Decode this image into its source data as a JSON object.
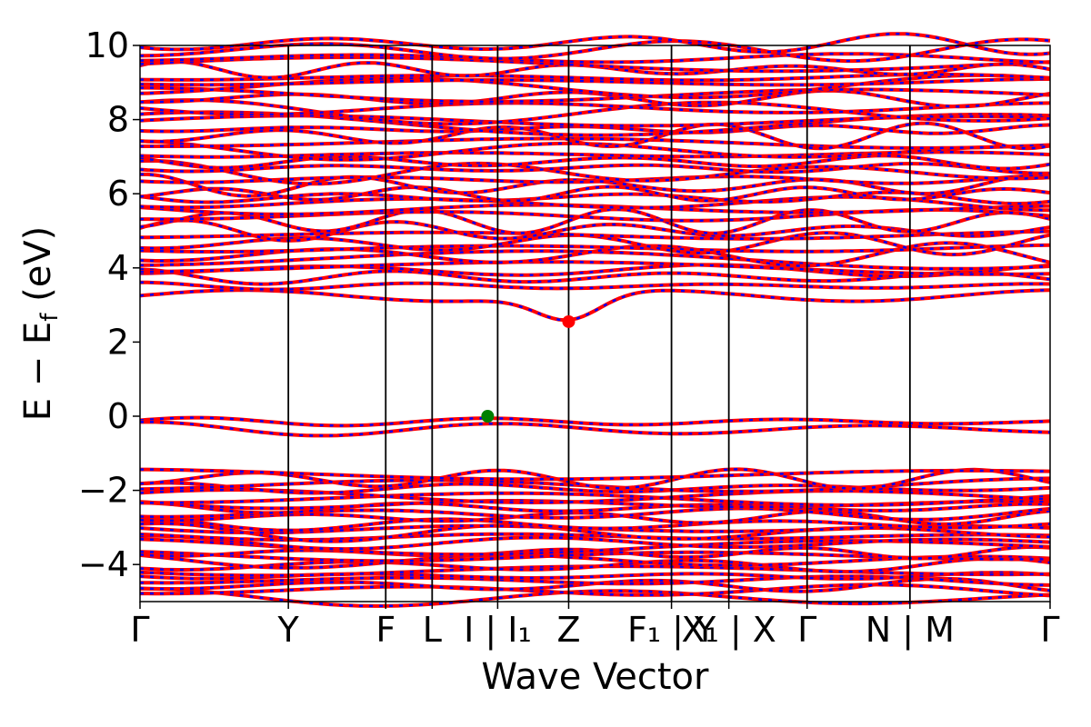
{
  "chart_data": {
    "type": "line",
    "title": "",
    "xlabel": "Wave Vector",
    "ylabel": "E − E_f (eV)",
    "ylabel_main": "E − E",
    "ylabel_sub": "f",
    "ylabel_tail": " (eV)",
    "ylim": [
      -5,
      10
    ],
    "xlim": [
      0,
      1
    ],
    "yticks": [
      {
        "value": 10,
        "label": "10"
      },
      {
        "value": 8,
        "label": "8"
      },
      {
        "value": 6,
        "label": "6"
      },
      {
        "value": 4,
        "label": "4"
      },
      {
        "value": 2,
        "label": "2"
      },
      {
        "value": 0,
        "label": "0"
      },
      {
        "value": -2,
        "label": "−2"
      },
      {
        "value": -4,
        "label": "−4"
      }
    ],
    "kpoints": [
      {
        "pos": 0.0,
        "label": "Γ",
        "line": false
      },
      {
        "pos": 0.163,
        "label": "Y",
        "line": true
      },
      {
        "pos": 0.27,
        "label": "F",
        "line": true
      },
      {
        "pos": 0.321,
        "label": "L",
        "line": true
      },
      {
        "pos": 0.393,
        "label": "I | I₁",
        "line": true
      },
      {
        "pos": 0.471,
        "label": "Z",
        "line": true
      },
      {
        "pos": 0.584,
        "label": "F₁ | Y",
        "line": true
      },
      {
        "pos": 0.647,
        "label": "X₁ | X",
        "line": true
      },
      {
        "pos": 0.733,
        "label": "Γ",
        "line": true
      },
      {
        "pos": 0.846,
        "label": "N | M",
        "line": true
      },
      {
        "pos": 1.0,
        "label": "Γ",
        "line": false
      }
    ],
    "series": [
      {
        "color_blue": "#0000ff",
        "color_red": "#ff0000"
      }
    ],
    "valence_band_edge": {
      "k": 0.382,
      "energy": 0.0,
      "color": "#008000"
    },
    "conduction_band_edge": {
      "k": 0.471,
      "energy": 2.55,
      "color": "#ff0000"
    },
    "colors": {
      "spin_up": "#0000ff",
      "spin_down": "#ff0000",
      "vbm_marker": "#008000",
      "cbm_marker": "#ff0000"
    }
  }
}
